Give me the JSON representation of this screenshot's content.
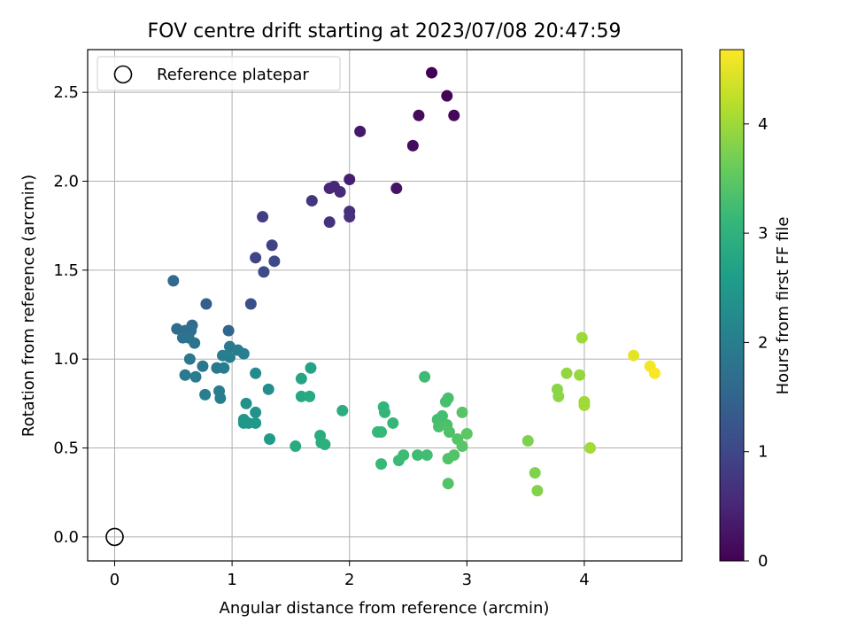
{
  "chart_data": {
    "type": "scatter",
    "title": "FOV centre drift starting at 2023/07/08 20:47:59",
    "xlabel": "Angular distance from reference (arcmin)",
    "ylabel": "Rotation from reference (arcmin)",
    "xlim": [
      -0.23,
      4.83
    ],
    "ylim": [
      -0.135,
      2.74
    ],
    "xticks": [
      0,
      1,
      2,
      3,
      4
    ],
    "yticks": [
      0.0,
      0.5,
      1.0,
      1.5,
      2.0,
      2.5
    ],
    "xtick_labels": [
      "0",
      "1",
      "2",
      "3",
      "4"
    ],
    "ytick_labels": [
      "0.0",
      "0.5",
      "1.0",
      "1.5",
      "2.0",
      "2.5"
    ],
    "grid": true,
    "legend": {
      "placement": "top-left",
      "entries": [
        "Reference platepar"
      ]
    },
    "reference_point": {
      "x": 0,
      "y": 0
    },
    "colorbar": {
      "label": "Hours from first FF file",
      "colormap": "viridis",
      "range": [
        0,
        4.68
      ],
      "ticks": [
        0,
        1,
        2,
        3,
        4
      ],
      "tick_labels": [
        "0",
        "1",
        "2",
        "3",
        "4"
      ]
    },
    "series": [
      {
        "points": [
          {
            "x": 2.7,
            "y": 2.61,
            "c": 0.0
          },
          {
            "x": 2.83,
            "y": 2.48,
            "c": 0.05
          },
          {
            "x": 2.89,
            "y": 2.37,
            "c": 0.08
          },
          {
            "x": 2.59,
            "y": 2.37,
            "c": 0.12
          },
          {
            "x": 2.54,
            "y": 2.2,
            "c": 0.15
          },
          {
            "x": 2.09,
            "y": 2.28,
            "c": 0.3
          },
          {
            "x": 2.4,
            "y": 1.96,
            "c": 0.22
          },
          {
            "x": 2.0,
            "y": 2.01,
            "c": 0.4
          },
          {
            "x": 1.83,
            "y": 1.96,
            "c": 0.5
          },
          {
            "x": 1.87,
            "y": 1.97,
            "c": 0.52
          },
          {
            "x": 1.92,
            "y": 1.94,
            "c": 0.55
          },
          {
            "x": 2.0,
            "y": 1.83,
            "c": 0.62
          },
          {
            "x": 2.0,
            "y": 1.8,
            "c": 0.65
          },
          {
            "x": 1.83,
            "y": 1.77,
            "c": 0.68
          },
          {
            "x": 1.68,
            "y": 1.89,
            "c": 0.72
          },
          {
            "x": 1.26,
            "y": 1.8,
            "c": 0.85
          },
          {
            "x": 1.34,
            "y": 1.64,
            "c": 0.92
          },
          {
            "x": 1.2,
            "y": 1.57,
            "c": 0.97
          },
          {
            "x": 1.36,
            "y": 1.55,
            "c": 1.02
          },
          {
            "x": 1.27,
            "y": 1.49,
            "c": 1.06
          },
          {
            "x": 1.16,
            "y": 1.31,
            "c": 1.12
          },
          {
            "x": 0.5,
            "y": 1.44,
            "c": 1.6
          },
          {
            "x": 0.78,
            "y": 1.31,
            "c": 1.4
          },
          {
            "x": 0.97,
            "y": 1.16,
            "c": 1.55
          },
          {
            "x": 0.66,
            "y": 1.19,
            "c": 1.62
          },
          {
            "x": 0.53,
            "y": 1.17,
            "c": 1.66
          },
          {
            "x": 0.6,
            "y": 1.16,
            "c": 1.7
          },
          {
            "x": 0.65,
            "y": 1.16,
            "c": 1.72
          },
          {
            "x": 0.58,
            "y": 1.12,
            "c": 1.75
          },
          {
            "x": 0.63,
            "y": 1.12,
            "c": 1.78
          },
          {
            "x": 0.68,
            "y": 1.09,
            "c": 1.8
          },
          {
            "x": 0.98,
            "y": 1.07,
            "c": 1.9
          },
          {
            "x": 1.05,
            "y": 1.05,
            "c": 1.95
          },
          {
            "x": 1.1,
            "y": 1.03,
            "c": 2.0
          },
          {
            "x": 0.92,
            "y": 1.02,
            "c": 1.98
          },
          {
            "x": 0.98,
            "y": 1.01,
            "c": 2.02
          },
          {
            "x": 0.64,
            "y": 1.0,
            "c": 1.85
          },
          {
            "x": 0.75,
            "y": 0.96,
            "c": 1.88
          },
          {
            "x": 0.87,
            "y": 0.95,
            "c": 1.92
          },
          {
            "x": 0.93,
            "y": 0.95,
            "c": 1.95
          },
          {
            "x": 0.6,
            "y": 0.91,
            "c": 1.9
          },
          {
            "x": 0.69,
            "y": 0.9,
            "c": 1.93
          },
          {
            "x": 0.77,
            "y": 0.8,
            "c": 1.97
          },
          {
            "x": 0.89,
            "y": 0.82,
            "c": 2.0
          },
          {
            "x": 0.9,
            "y": 0.78,
            "c": 2.03
          },
          {
            "x": 1.2,
            "y": 0.92,
            "c": 2.25
          },
          {
            "x": 1.31,
            "y": 0.83,
            "c": 2.3
          },
          {
            "x": 1.12,
            "y": 0.75,
            "c": 2.35
          },
          {
            "x": 1.2,
            "y": 0.7,
            "c": 2.4
          },
          {
            "x": 1.1,
            "y": 0.66,
            "c": 2.42
          },
          {
            "x": 1.1,
            "y": 0.64,
            "c": 2.45
          },
          {
            "x": 1.14,
            "y": 0.64,
            "c": 2.47
          },
          {
            "x": 1.2,
            "y": 0.64,
            "c": 2.5
          },
          {
            "x": 1.32,
            "y": 0.55,
            "c": 2.55
          },
          {
            "x": 1.67,
            "y": 0.95,
            "c": 2.7
          },
          {
            "x": 1.59,
            "y": 0.89,
            "c": 2.75
          },
          {
            "x": 1.59,
            "y": 0.79,
            "c": 2.8
          },
          {
            "x": 1.66,
            "y": 0.79,
            "c": 2.82
          },
          {
            "x": 1.94,
            "y": 0.71,
            "c": 2.9
          },
          {
            "x": 1.75,
            "y": 0.57,
            "c": 2.88
          },
          {
            "x": 1.76,
            "y": 0.53,
            "c": 2.92
          },
          {
            "x": 1.79,
            "y": 0.52,
            "c": 2.95
          },
          {
            "x": 1.54,
            "y": 0.51,
            "c": 2.85
          },
          {
            "x": 2.29,
            "y": 0.73,
            "c": 3.05
          },
          {
            "x": 2.3,
            "y": 0.7,
            "c": 3.08
          },
          {
            "x": 2.37,
            "y": 0.64,
            "c": 3.1
          },
          {
            "x": 2.24,
            "y": 0.59,
            "c": 3.12
          },
          {
            "x": 2.27,
            "y": 0.59,
            "c": 3.14
          },
          {
            "x": 2.27,
            "y": 0.41,
            "c": 3.15
          },
          {
            "x": 2.42,
            "y": 0.43,
            "c": 3.18
          },
          {
            "x": 2.46,
            "y": 0.46,
            "c": 3.2
          },
          {
            "x": 2.58,
            "y": 0.46,
            "c": 3.22
          },
          {
            "x": 2.66,
            "y": 0.46,
            "c": 3.24
          },
          {
            "x": 2.64,
            "y": 0.9,
            "c": 3.2
          },
          {
            "x": 2.75,
            "y": 0.66,
            "c": 3.26
          },
          {
            "x": 2.79,
            "y": 0.68,
            "c": 3.28
          },
          {
            "x": 2.82,
            "y": 0.76,
            "c": 3.3
          },
          {
            "x": 2.84,
            "y": 0.78,
            "c": 3.3
          },
          {
            "x": 2.76,
            "y": 0.62,
            "c": 3.32
          },
          {
            "x": 2.83,
            "y": 0.63,
            "c": 3.34
          },
          {
            "x": 2.85,
            "y": 0.59,
            "c": 3.36
          },
          {
            "x": 2.84,
            "y": 0.44,
            "c": 3.38
          },
          {
            "x": 2.89,
            "y": 0.46,
            "c": 3.4
          },
          {
            "x": 2.84,
            "y": 0.3,
            "c": 3.4
          },
          {
            "x": 2.92,
            "y": 0.55,
            "c": 3.42
          },
          {
            "x": 2.96,
            "y": 0.7,
            "c": 3.44
          },
          {
            "x": 2.96,
            "y": 0.51,
            "c": 3.45
          },
          {
            "x": 3.0,
            "y": 0.58,
            "c": 3.47
          },
          {
            "x": 3.52,
            "y": 0.54,
            "c": 3.75
          },
          {
            "x": 3.58,
            "y": 0.36,
            "c": 3.78
          },
          {
            "x": 3.6,
            "y": 0.26,
            "c": 3.8
          },
          {
            "x": 3.77,
            "y": 0.83,
            "c": 3.85
          },
          {
            "x": 3.78,
            "y": 0.79,
            "c": 3.87
          },
          {
            "x": 3.85,
            "y": 0.92,
            "c": 3.92
          },
          {
            "x": 3.96,
            "y": 0.91,
            "c": 3.95
          },
          {
            "x": 3.98,
            "y": 1.12,
            "c": 4.0
          },
          {
            "x": 4.0,
            "y": 0.76,
            "c": 4.0
          },
          {
            "x": 4.0,
            "y": 0.74,
            "c": 4.02
          },
          {
            "x": 4.05,
            "y": 0.5,
            "c": 4.05
          },
          {
            "x": 4.42,
            "y": 1.02,
            "c": 4.5
          },
          {
            "x": 4.56,
            "y": 0.96,
            "c": 4.6
          },
          {
            "x": 4.6,
            "y": 0.92,
            "c": 4.65
          }
        ]
      }
    ]
  }
}
